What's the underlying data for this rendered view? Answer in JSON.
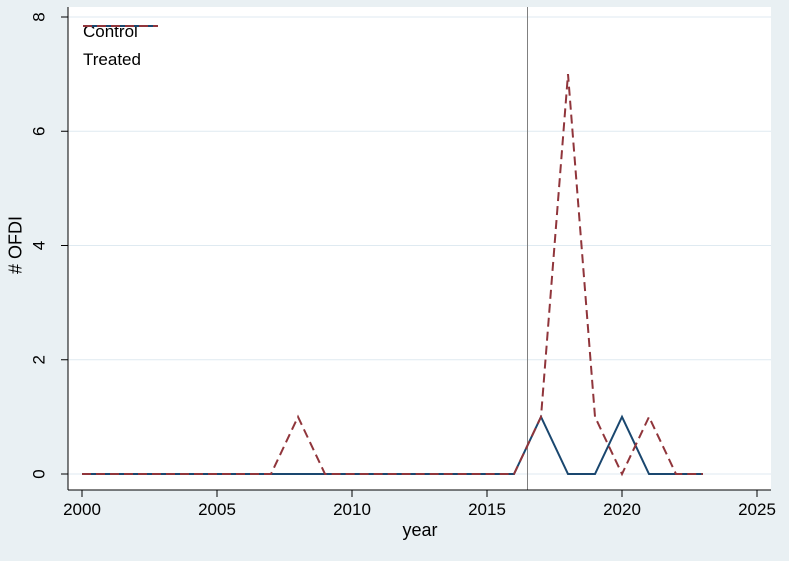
{
  "chart_data": {
    "type": "line",
    "title": "",
    "xlabel": "year",
    "ylabel": "# OFDI",
    "x": [
      2000,
      2001,
      2002,
      2003,
      2004,
      2005,
      2006,
      2007,
      2008,
      2009,
      2010,
      2011,
      2012,
      2013,
      2014,
      2015,
      2016,
      2017,
      2018,
      2019,
      2020,
      2021,
      2022,
      2023
    ],
    "series": [
      {
        "name": "Control",
        "color": "#1a476f",
        "style": "solid",
        "values": [
          0,
          0,
          0,
          0,
          0,
          0,
          0,
          0,
          0,
          0,
          0,
          0,
          0,
          0,
          0,
          0,
          0,
          1,
          0,
          0,
          1,
          0,
          0,
          0
        ]
      },
      {
        "name": "Treated",
        "color": "#90353b",
        "style": "dashed",
        "values": [
          0,
          0,
          0,
          0,
          0,
          0,
          0,
          0,
          1,
          0,
          0,
          0,
          0,
          0,
          0,
          0,
          0,
          1,
          7,
          1,
          0,
          1,
          0,
          0
        ]
      }
    ],
    "xticks": [
      2000,
      2005,
      2010,
      2015,
      2020,
      2025
    ],
    "yticks": [
      0,
      2,
      4,
      6,
      8
    ],
    "xlim": [
      1999.45,
      2025.5
    ],
    "ylim": [
      -0.28,
      8.2
    ],
    "grid": true,
    "legend_position": "top-left-inside",
    "vline": {
      "x": 2016.5,
      "color": "#808080"
    }
  },
  "colors": {
    "background": "#e9f0f3",
    "plot_background": "#ffffff",
    "gridline": "#dfeaf1",
    "axis": "#000000",
    "tick_text": "#000000"
  }
}
